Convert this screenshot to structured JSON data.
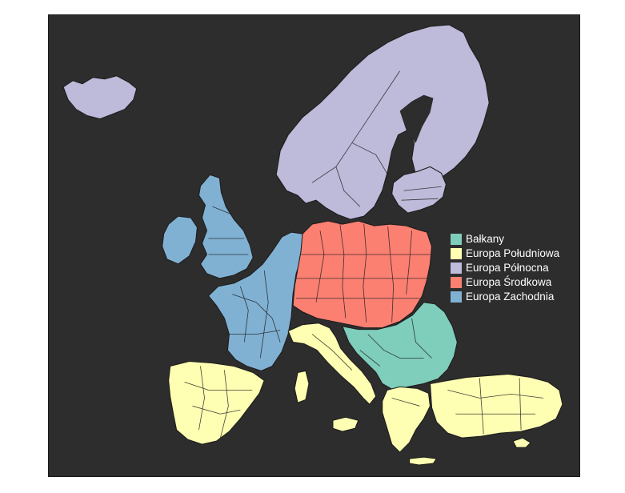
{
  "map": {
    "legend": [
      {
        "key": "balkany",
        "label": "Bałkany",
        "color": "#7fcdbb"
      },
      {
        "key": "poludniowa",
        "label": "Europa Południowa",
        "color": "#ffffb3"
      },
      {
        "key": "polnocna",
        "label": "Europa Północna",
        "color": "#bebada"
      },
      {
        "key": "srodkowa",
        "label": "Europa Środkowa",
        "color": "#fb8072"
      },
      {
        "key": "zachodnia",
        "label": "Europa Zachodnia",
        "color": "#80b1d3"
      }
    ],
    "background_color": "#2d2d2d",
    "border_color": "#1e1e1e"
  }
}
